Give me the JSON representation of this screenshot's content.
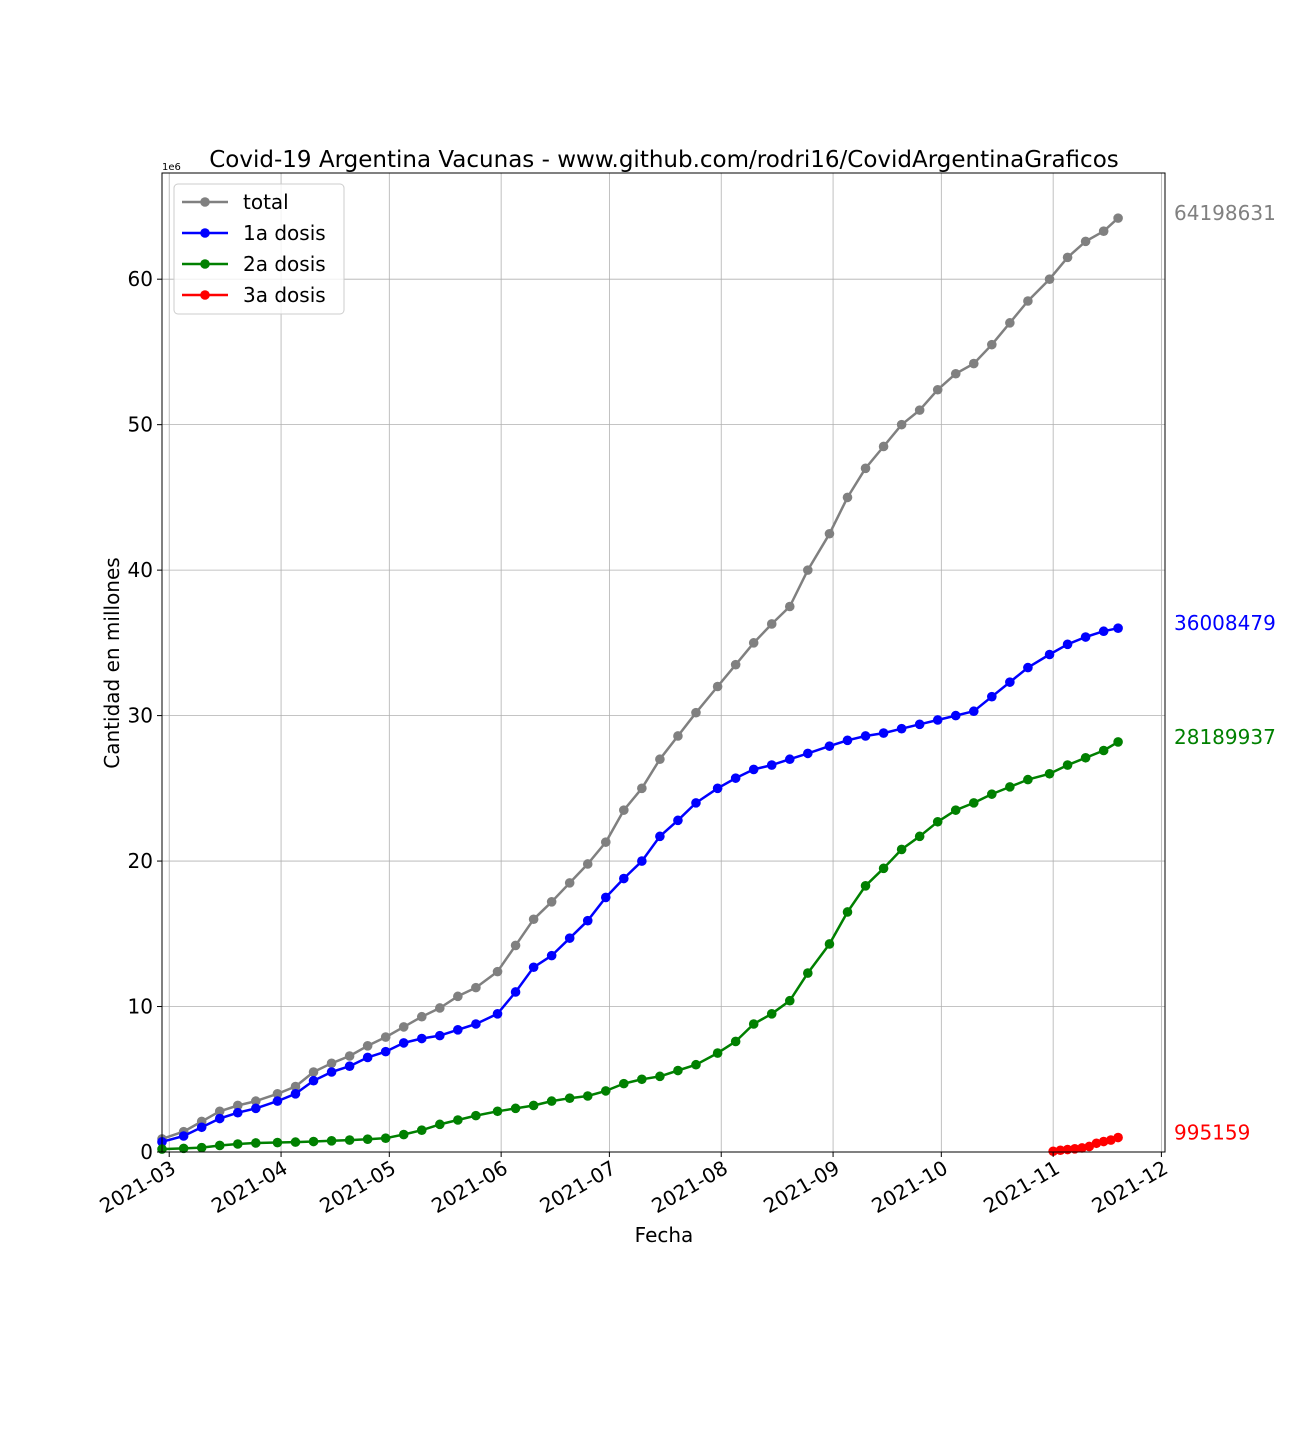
{
  "chart_data": {
    "type": "line",
    "title": "Covid-19 Argentina Vacunas - www.github.com/rodri16/CovidArgentinaGraficos",
    "xlabel": "Fecha",
    "ylabel": "Cantidad en millones",
    "y_offset_label": "1e6",
    "ylim": [
      0,
      67300000
    ],
    "xlim": [
      "2021-02-27",
      "2021-12-02"
    ],
    "x_ticks": [
      "2021-03",
      "2021-04",
      "2021-05",
      "2021-06",
      "2021-07",
      "2021-08",
      "2021-09",
      "2021-10",
      "2021-11",
      "2021-12"
    ],
    "x_tick_dates": [
      "2021-03-01",
      "2021-04-01",
      "2021-05-01",
      "2021-06-01",
      "2021-07-01",
      "2021-08-01",
      "2021-09-01",
      "2021-10-01",
      "2021-11-01",
      "2021-12-01"
    ],
    "y_ticks": [
      0,
      10000000,
      20000000,
      30000000,
      40000000,
      50000000,
      60000000
    ],
    "y_tick_labels": [
      "0",
      "10",
      "20",
      "30",
      "40",
      "50",
      "60"
    ],
    "grid": true,
    "legend_position": "top-left",
    "series": [
      {
        "name": "total",
        "color": "#808080",
        "end_label": "64198631",
        "points": [
          [
            "2021-02-27",
            900000
          ],
          [
            "2021-03-05",
            1400000
          ],
          [
            "2021-03-10",
            2100000
          ],
          [
            "2021-03-15",
            2800000
          ],
          [
            "2021-03-20",
            3200000
          ],
          [
            "2021-03-25",
            3500000
          ],
          [
            "2021-03-31",
            4000000
          ],
          [
            "2021-04-05",
            4500000
          ],
          [
            "2021-04-10",
            5500000
          ],
          [
            "2021-04-15",
            6100000
          ],
          [
            "2021-04-20",
            6600000
          ],
          [
            "2021-04-25",
            7300000
          ],
          [
            "2021-04-30",
            7900000
          ],
          [
            "2021-05-05",
            8600000
          ],
          [
            "2021-05-10",
            9300000
          ],
          [
            "2021-05-15",
            9900000
          ],
          [
            "2021-05-20",
            10700000
          ],
          [
            "2021-05-25",
            11300000
          ],
          [
            "2021-05-31",
            12400000
          ],
          [
            "2021-06-05",
            14200000
          ],
          [
            "2021-06-10",
            16000000
          ],
          [
            "2021-06-15",
            17200000
          ],
          [
            "2021-06-20",
            18500000
          ],
          [
            "2021-06-25",
            19800000
          ],
          [
            "2021-06-30",
            21300000
          ],
          [
            "2021-07-05",
            23500000
          ],
          [
            "2021-07-10",
            25000000
          ],
          [
            "2021-07-15",
            27000000
          ],
          [
            "2021-07-20",
            28600000
          ],
          [
            "2021-07-25",
            30200000
          ],
          [
            "2021-07-31",
            32000000
          ],
          [
            "2021-08-05",
            33500000
          ],
          [
            "2021-08-10",
            35000000
          ],
          [
            "2021-08-15",
            36300000
          ],
          [
            "2021-08-20",
            37500000
          ],
          [
            "2021-08-25",
            40000000
          ],
          [
            "2021-08-31",
            42500000
          ],
          [
            "2021-09-05",
            45000000
          ],
          [
            "2021-09-10",
            47000000
          ],
          [
            "2021-09-15",
            48500000
          ],
          [
            "2021-09-20",
            50000000
          ],
          [
            "2021-09-25",
            51000000
          ],
          [
            "2021-09-30",
            52400000
          ],
          [
            "2021-10-05",
            53500000
          ],
          [
            "2021-10-10",
            54200000
          ],
          [
            "2021-10-15",
            55500000
          ],
          [
            "2021-10-20",
            57000000
          ],
          [
            "2021-10-25",
            58500000
          ],
          [
            "2021-10-31",
            60000000
          ],
          [
            "2021-11-05",
            61500000
          ],
          [
            "2021-11-10",
            62600000
          ],
          [
            "2021-11-15",
            63300000
          ],
          [
            "2021-11-19",
            64198631
          ]
        ]
      },
      {
        "name": "1a dosis",
        "color": "#0000ff",
        "end_label": "36008479",
        "points": [
          [
            "2021-02-27",
            700000
          ],
          [
            "2021-03-05",
            1100000
          ],
          [
            "2021-03-10",
            1700000
          ],
          [
            "2021-03-15",
            2300000
          ],
          [
            "2021-03-20",
            2700000
          ],
          [
            "2021-03-25",
            3000000
          ],
          [
            "2021-03-31",
            3500000
          ],
          [
            "2021-04-05",
            4000000
          ],
          [
            "2021-04-10",
            4900000
          ],
          [
            "2021-04-15",
            5500000
          ],
          [
            "2021-04-20",
            5900000
          ],
          [
            "2021-04-25",
            6500000
          ],
          [
            "2021-04-30",
            6900000
          ],
          [
            "2021-05-05",
            7500000
          ],
          [
            "2021-05-10",
            7800000
          ],
          [
            "2021-05-15",
            8000000
          ],
          [
            "2021-05-20",
            8400000
          ],
          [
            "2021-05-25",
            8800000
          ],
          [
            "2021-05-31",
            9500000
          ],
          [
            "2021-06-05",
            11000000
          ],
          [
            "2021-06-10",
            12700000
          ],
          [
            "2021-06-15",
            13500000
          ],
          [
            "2021-06-20",
            14700000
          ],
          [
            "2021-06-25",
            15900000
          ],
          [
            "2021-06-30",
            17500000
          ],
          [
            "2021-07-05",
            18800000
          ],
          [
            "2021-07-10",
            20000000
          ],
          [
            "2021-07-15",
            21700000
          ],
          [
            "2021-07-20",
            22800000
          ],
          [
            "2021-07-25",
            24000000
          ],
          [
            "2021-07-31",
            25000000
          ],
          [
            "2021-08-05",
            25700000
          ],
          [
            "2021-08-10",
            26300000
          ],
          [
            "2021-08-15",
            26600000
          ],
          [
            "2021-08-20",
            27000000
          ],
          [
            "2021-08-25",
            27400000
          ],
          [
            "2021-08-31",
            27900000
          ],
          [
            "2021-09-05",
            28300000
          ],
          [
            "2021-09-10",
            28600000
          ],
          [
            "2021-09-15",
            28800000
          ],
          [
            "2021-09-20",
            29100000
          ],
          [
            "2021-09-25",
            29400000
          ],
          [
            "2021-09-30",
            29700000
          ],
          [
            "2021-10-05",
            30000000
          ],
          [
            "2021-10-10",
            30300000
          ],
          [
            "2021-10-15",
            31300000
          ],
          [
            "2021-10-20",
            32300000
          ],
          [
            "2021-10-25",
            33300000
          ],
          [
            "2021-10-31",
            34200000
          ],
          [
            "2021-11-05",
            34900000
          ],
          [
            "2021-11-10",
            35400000
          ],
          [
            "2021-11-15",
            35800000
          ],
          [
            "2021-11-19",
            36008479
          ]
        ]
      },
      {
        "name": "2a dosis",
        "color": "#008000",
        "end_label": "28189937",
        "points": [
          [
            "2021-02-27",
            200000
          ],
          [
            "2021-03-05",
            250000
          ],
          [
            "2021-03-10",
            300000
          ],
          [
            "2021-03-15",
            450000
          ],
          [
            "2021-03-20",
            550000
          ],
          [
            "2021-03-25",
            620000
          ],
          [
            "2021-03-31",
            650000
          ],
          [
            "2021-04-05",
            680000
          ],
          [
            "2021-04-10",
            720000
          ],
          [
            "2021-04-15",
            770000
          ],
          [
            "2021-04-20",
            820000
          ],
          [
            "2021-04-25",
            880000
          ],
          [
            "2021-04-30",
            950000
          ],
          [
            "2021-05-05",
            1200000
          ],
          [
            "2021-05-10",
            1500000
          ],
          [
            "2021-05-15",
            1900000
          ],
          [
            "2021-05-20",
            2200000
          ],
          [
            "2021-05-25",
            2500000
          ],
          [
            "2021-05-31",
            2800000
          ],
          [
            "2021-06-05",
            3000000
          ],
          [
            "2021-06-10",
            3200000
          ],
          [
            "2021-06-15",
            3500000
          ],
          [
            "2021-06-20",
            3700000
          ],
          [
            "2021-06-25",
            3850000
          ],
          [
            "2021-06-30",
            4200000
          ],
          [
            "2021-07-05",
            4700000
          ],
          [
            "2021-07-10",
            5000000
          ],
          [
            "2021-07-15",
            5200000
          ],
          [
            "2021-07-20",
            5600000
          ],
          [
            "2021-07-25",
            6000000
          ],
          [
            "2021-07-31",
            6800000
          ],
          [
            "2021-08-05",
            7600000
          ],
          [
            "2021-08-10",
            8800000
          ],
          [
            "2021-08-15",
            9500000
          ],
          [
            "2021-08-20",
            10400000
          ],
          [
            "2021-08-25",
            12300000
          ],
          [
            "2021-08-31",
            14300000
          ],
          [
            "2021-09-05",
            16500000
          ],
          [
            "2021-09-10",
            18300000
          ],
          [
            "2021-09-15",
            19500000
          ],
          [
            "2021-09-20",
            20800000
          ],
          [
            "2021-09-25",
            21700000
          ],
          [
            "2021-09-30",
            22700000
          ],
          [
            "2021-10-05",
            23500000
          ],
          [
            "2021-10-10",
            24000000
          ],
          [
            "2021-10-15",
            24600000
          ],
          [
            "2021-10-20",
            25100000
          ],
          [
            "2021-10-25",
            25600000
          ],
          [
            "2021-10-31",
            26000000
          ],
          [
            "2021-11-05",
            26600000
          ],
          [
            "2021-11-10",
            27100000
          ],
          [
            "2021-11-15",
            27600000
          ],
          [
            "2021-11-19",
            28189937
          ]
        ]
      },
      {
        "name": "3a dosis",
        "color": "#ff0000",
        "end_label": "995159",
        "points": [
          [
            "2021-11-01",
            50000
          ],
          [
            "2021-11-03",
            120000
          ],
          [
            "2021-11-05",
            170000
          ],
          [
            "2021-11-07",
            220000
          ],
          [
            "2021-11-09",
            280000
          ],
          [
            "2021-11-11",
            380000
          ],
          [
            "2021-11-13",
            600000
          ],
          [
            "2021-11-15",
            720000
          ],
          [
            "2021-11-17",
            820000
          ],
          [
            "2021-11-19",
            995159
          ]
        ]
      }
    ]
  }
}
